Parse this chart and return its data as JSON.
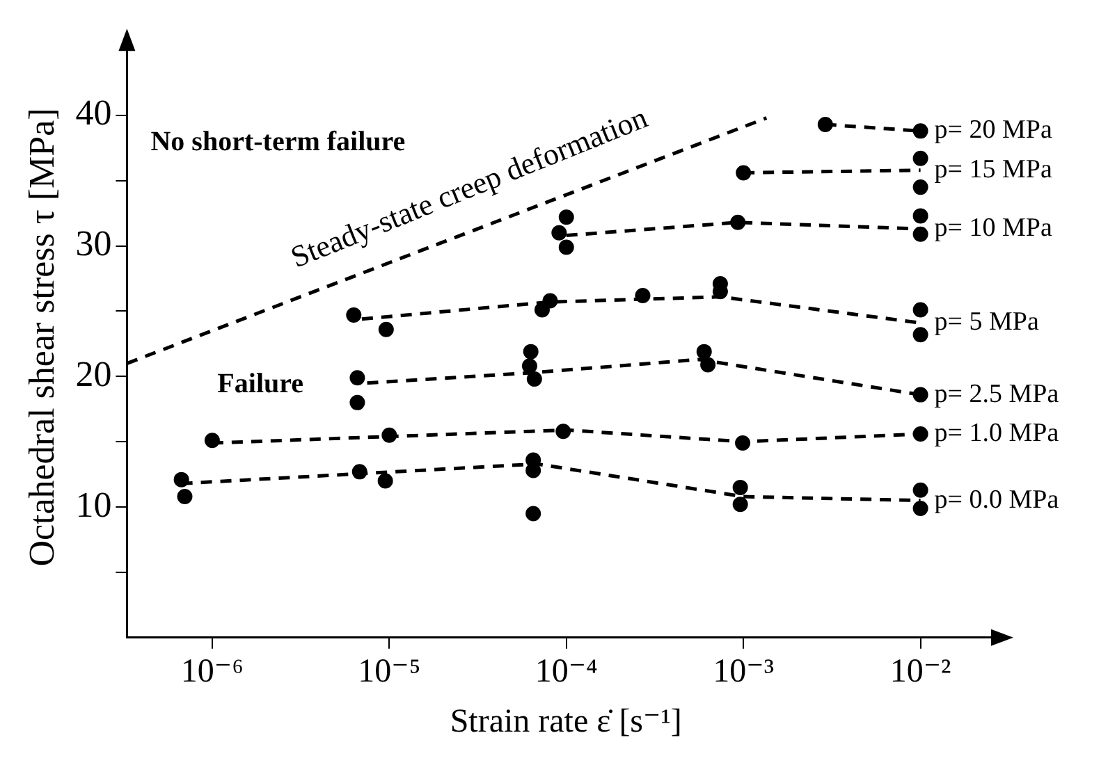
{
  "chart_data": {
    "type": "scatter",
    "xlabel": "Strain rate ε̇ [s⁻¹]",
    "ylabel": "Octahedral shear stress τ [MPa]",
    "log": "x",
    "grid": false,
    "legend": false,
    "xlim": [
      3.3e-07,
      0.03
    ],
    "xticks": [
      {
        "value": 1e-06,
        "label": "10⁻⁶"
      },
      {
        "value": 1e-05,
        "label": "10⁻⁵"
      },
      {
        "value": 0.0001,
        "label": "10⁻⁴"
      },
      {
        "value": 0.001,
        "label": "10⁻³"
      },
      {
        "value": 0.01,
        "label": "10⁻²"
      }
    ],
    "ylim": [
      0,
      46
    ],
    "yticks": [
      {
        "value": 5,
        "label": null
      },
      10,
      {
        "value": 15,
        "label": null
      },
      20,
      {
        "value": 25,
        "label": null
      },
      30,
      {
        "value": 35,
        "label": null
      },
      40
    ],
    "annotations": [
      "No short-term failure",
      "Failure",
      "Steady-state creep deformation"
    ],
    "series": [
      {
        "type": "line",
        "color": "#000000",
        "line_style": "dashed",
        "marker": "none",
        "x": [
          3.3e-07,
          0.00135
        ],
        "values": [
          21.0,
          39.8
        ]
      },
      {
        "type": "scatter",
        "color": "#000000",
        "marker": "circle",
        "x": [
          0.0029,
          0.01
        ],
        "values": [
          39.3,
          38.8
        ]
      },
      {
        "type": "line",
        "name": "p= 20 MPa",
        "color": "#000000",
        "line_style": "dashed",
        "marker": "none",
        "x": [
          0.0029,
          0.01
        ],
        "values": [
          39.3,
          38.8
        ]
      },
      {
        "type": "scatter",
        "color": "#000000",
        "marker": "circle",
        "x": [
          0.001,
          0.01,
          0.01
        ],
        "values": [
          35.6,
          36.7,
          34.5
        ]
      },
      {
        "type": "line",
        "name": "p= 15 MPa",
        "color": "#000000",
        "line_style": "dashed",
        "marker": "none",
        "x": [
          0.001,
          0.01
        ],
        "values": [
          35.6,
          35.8
        ]
      },
      {
        "type": "scatter",
        "color": "#000000",
        "marker": "circle",
        "x": [
          0.0001,
          9.1e-05,
          0.0001,
          0.00093,
          0.01,
          0.01
        ],
        "values": [
          32.2,
          31.0,
          29.9,
          31.8,
          32.3,
          30.9
        ]
      },
      {
        "type": "line",
        "name": "p= 10 MPa",
        "color": "#000000",
        "line_style": "dashed",
        "marker": "none",
        "x": [
          0.0001,
          0.00093,
          0.01
        ],
        "values": [
          30.8,
          31.8,
          31.3
        ]
      },
      {
        "type": "scatter",
        "color": "#000000",
        "marker": "circle",
        "x": [
          6.3e-06,
          9.6e-06,
          8.1e-05,
          7.3e-05,
          0.00027,
          0.00074,
          0.00074,
          0.01,
          0.01
        ],
        "values": [
          24.7,
          23.6,
          25.8,
          25.1,
          26.2,
          27.1,
          26.5,
          25.1,
          23.2
        ]
      },
      {
        "type": "line",
        "name": "p= 5 MPa",
        "color": "#000000",
        "line_style": "dashed",
        "marker": "none",
        "x": [
          7e-06,
          8e-05,
          0.00074,
          0.01
        ],
        "values": [
          24.4,
          25.7,
          26.1,
          24.1
        ]
      },
      {
        "type": "scatter",
        "color": "#000000",
        "marker": "circle",
        "x": [
          6.6e-06,
          6.6e-06,
          6.3e-05,
          6.2e-05,
          6.6e-05,
          0.0006,
          0.00063,
          0.01
        ],
        "values": [
          19.9,
          18.0,
          21.9,
          20.8,
          19.8,
          21.9,
          20.9,
          18.6
        ]
      },
      {
        "type": "line",
        "name": "p= 2.5 MPa",
        "color": "#000000",
        "line_style": "dashed",
        "marker": "none",
        "x": [
          7.5e-06,
          6.6e-05,
          0.00056,
          0.01
        ],
        "values": [
          19.5,
          20.3,
          21.3,
          18.6
        ]
      },
      {
        "type": "scatter",
        "color": "#000000",
        "marker": "circle",
        "x": [
          1e-06,
          1e-05,
          9.6e-05,
          0.00099,
          0.01
        ],
        "values": [
          15.1,
          15.5,
          15.8,
          14.9,
          15.6
        ]
      },
      {
        "type": "line",
        "name": "p= 1.0 MPa",
        "color": "#000000",
        "line_style": "dashed",
        "marker": "none",
        "x": [
          1e-06,
          0.0001,
          0.001,
          0.01
        ],
        "values": [
          14.9,
          15.9,
          15.0,
          15.6
        ]
      },
      {
        "type": "scatter",
        "color": "#000000",
        "marker": "circle",
        "x": [
          6.7e-07,
          7e-07,
          6.8e-06,
          9.5e-06,
          6.5e-05,
          6.5e-05,
          6.5e-05,
          0.00096,
          0.00096,
          0.01,
          0.01
        ],
        "values": [
          12.1,
          10.8,
          12.7,
          12.0,
          13.6,
          12.8,
          9.5,
          11.5,
          10.2,
          11.3,
          9.9
        ]
      },
      {
        "type": "line",
        "name": "p= 0.0 MPa",
        "color": "#000000",
        "line_style": "dashed",
        "marker": "none",
        "x": [
          6.7e-07,
          6.8e-05,
          0.001,
          0.01
        ],
        "values": [
          11.8,
          13.3,
          10.8,
          10.5
        ]
      }
    ]
  }
}
